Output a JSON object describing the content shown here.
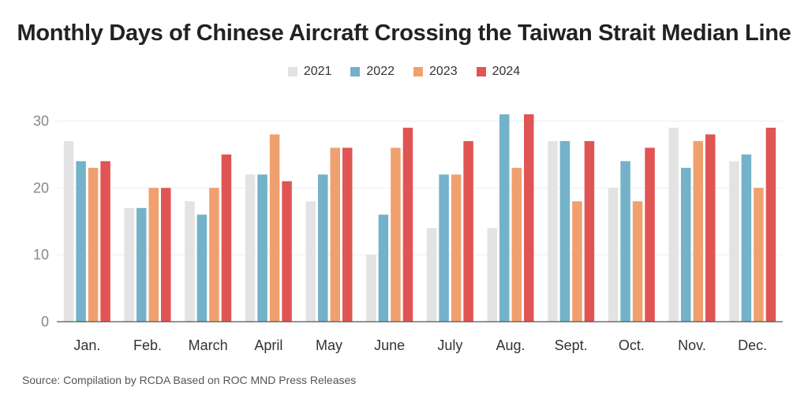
{
  "chart_data": {
    "type": "bar",
    "title": "Monthly Days of Chinese Aircraft Crossing the Taiwan Strait Median Line",
    "categories": [
      "Jan.",
      "Feb.",
      "March",
      "April",
      "May",
      "June",
      "July",
      "Aug.",
      "Sept.",
      "Oct.",
      "Nov.",
      "Dec."
    ],
    "series": [
      {
        "name": "2021",
        "color": "#e3e3e3",
        "values": [
          27,
          17,
          18,
          22,
          18,
          10,
          14,
          14,
          27,
          20,
          29,
          24
        ]
      },
      {
        "name": "2022",
        "color": "#73b2c8",
        "values": [
          24,
          17,
          16,
          22,
          22,
          16,
          22,
          31,
          27,
          24,
          23,
          25
        ]
      },
      {
        "name": "2023",
        "color": "#f0a06e",
        "values": [
          23,
          20,
          20,
          28,
          26,
          26,
          22,
          23,
          18,
          18,
          27,
          20
        ]
      },
      {
        "name": "2024",
        "color": "#e05553",
        "values": [
          24,
          20,
          25,
          21,
          26,
          29,
          27,
          31,
          27,
          26,
          28,
          29
        ]
      }
    ],
    "y_ticks": [
      "0",
      "10",
      "20",
      "30"
    ],
    "ylim": [
      0,
      31
    ],
    "grid": true,
    "legend": "top-center",
    "source": "Source: Compilation by RCDA Based on ROC MND Press Releases"
  }
}
